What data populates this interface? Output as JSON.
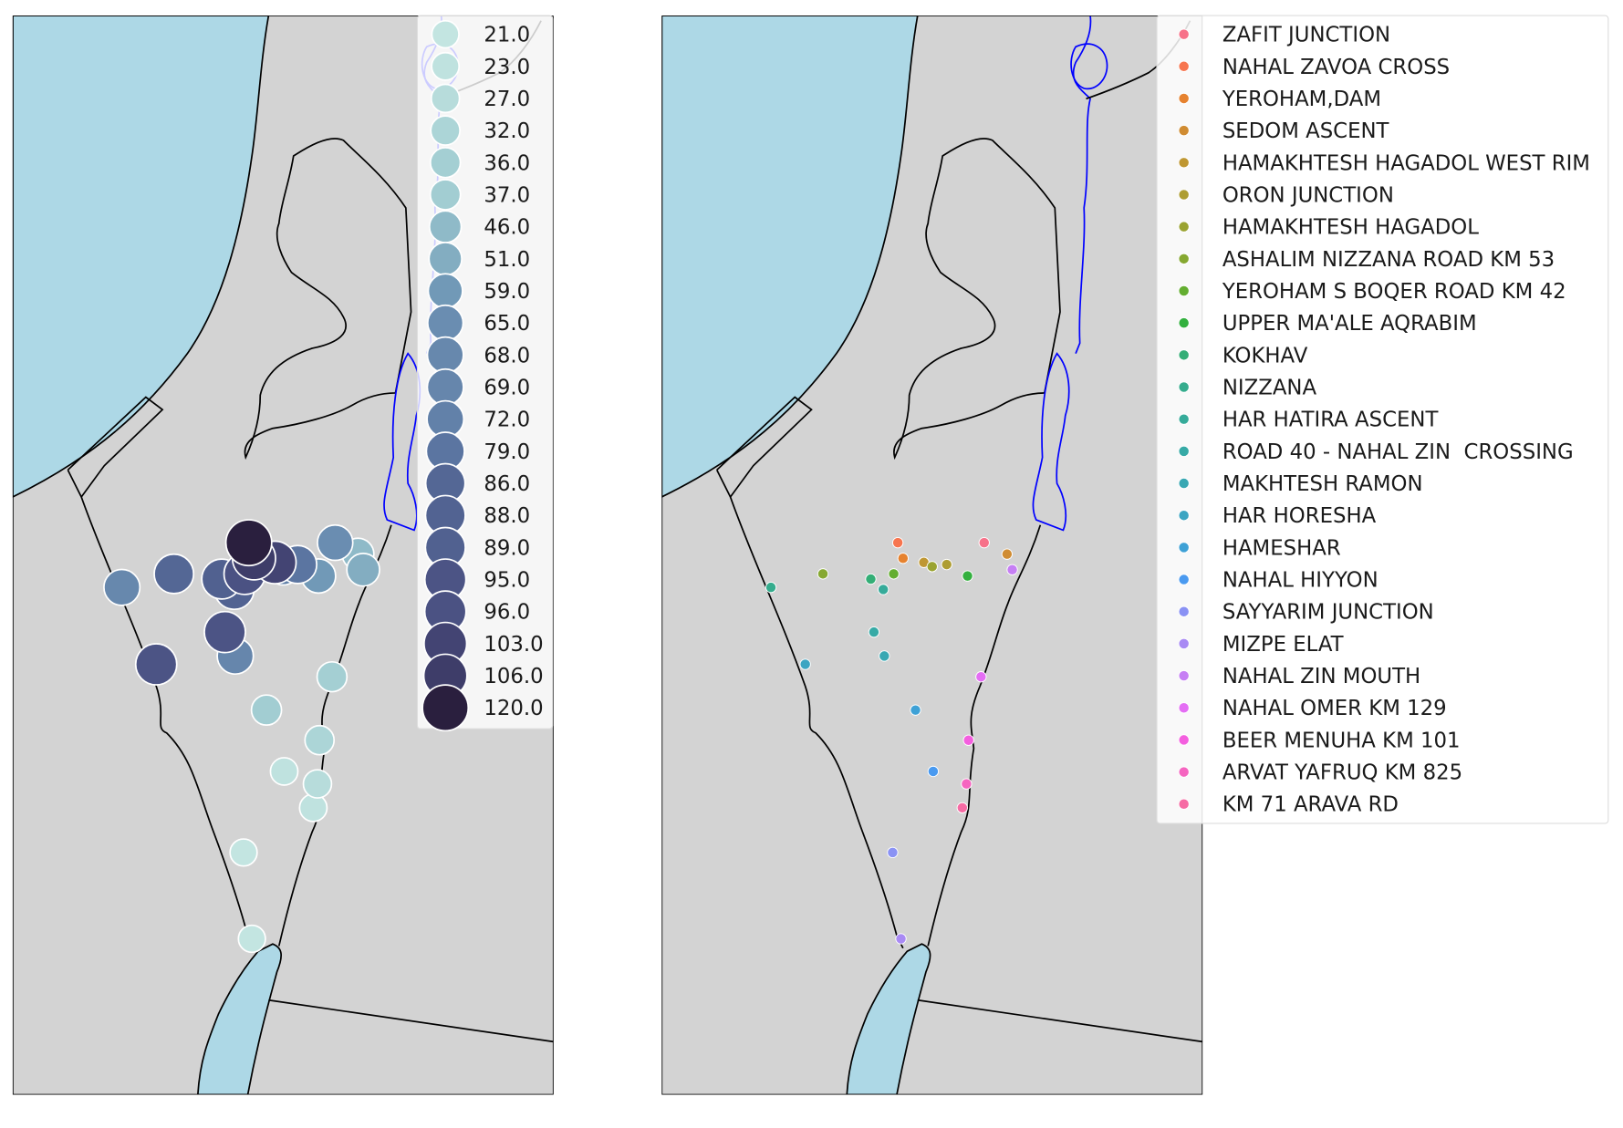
{
  "chart_data": [
    {
      "type": "scatter",
      "encoding": "marker size and color by value",
      "legend_placement": "upper-right",
      "legend_values": [
        21.0,
        23.0,
        27.0,
        32.0,
        36.0,
        37.0,
        46.0,
        51.0,
        59.0,
        65.0,
        68.0,
        69.0,
        72.0,
        79.0,
        86.0,
        88.0,
        89.0,
        95.0,
        96.0,
        103.0,
        106.0,
        120.0
      ],
      "legend_labels": [
        "21.0",
        "23.0",
        "27.0",
        "32.0",
        "36.0",
        "37.0",
        "46.0",
        "51.0",
        "59.0",
        "65.0",
        "68.0",
        "69.0",
        "72.0",
        "79.0",
        "86.0",
        "88.0",
        "89.0",
        "95.0",
        "96.0",
        "103.0",
        "106.0",
        "120.0"
      ],
      "color_low": "#c3e5e1",
      "color_high": "#2a1f3e"
    },
    {
      "type": "scatter",
      "encoding": "marker color by station",
      "legend_placement": "upper-right, outside",
      "stations": [
        {
          "name": "ZAFIT JUNCTION",
          "color": "#f77189",
          "value": 65
        },
        {
          "name": "NAHAL ZAVOA CROSS",
          "color": "#f7754f",
          "value": 120
        },
        {
          "name": "YEROHAM,DAM",
          "color": "#e6822f",
          "value": 106
        },
        {
          "name": "SEDOM ASCENT",
          "color": "#d08c32",
          "value": 46
        },
        {
          "name": "HAMAKHTESH HAGADOL WEST RIM",
          "color": "#bf9732",
          "value": 103
        },
        {
          "name": "ORON JUNCTION",
          "color": "#ae9d31",
          "value": 79
        },
        {
          "name": "HAMAKHTESH HAGADOL",
          "color": "#9aa331",
          "value": 72
        },
        {
          "name": "ASHALIM NIZZANA ROAD KM 53",
          "color": "#86a831",
          "value": 86
        },
        {
          "name": "YEROHAM S BOQER ROAD KM 42",
          "color": "#64ae31",
          "value": 96
        },
        {
          "name": "UPPER MA'ALE AQRABIM",
          "color": "#33b03e",
          "value": 59
        },
        {
          "name": "KOKHAV",
          "color": "#34ae76",
          "value": 89
        },
        {
          "name": "NIZZANA",
          "color": "#35ac8d",
          "value": 68
        },
        {
          "name": "HAR HATIRA ASCENT",
          "color": "#36ab9a",
          "value": 88
        },
        {
          "name": "ROAD 40 - NAHAL ZIN  CROSSING",
          "color": "#37aaa6",
          "value": 95
        },
        {
          "name": "MAKHTESH RAMON",
          "color": "#39a8b3",
          "value": 69
        },
        {
          "name": "HAR HORESHA",
          "color": "#3ba5c2",
          "value": 95
        },
        {
          "name": "HAMESHAR",
          "color": "#3ea1d6",
          "value": 37
        },
        {
          "name": "NAHAL HIYYON",
          "color": "#4a9af0",
          "value": 23
        },
        {
          "name": "SAYYARIM JUNCTION",
          "color": "#8a92f4",
          "value": 21
        },
        {
          "name": "MIZPE ELAT",
          "color": "#a98af4",
          "value": 21
        },
        {
          "name": "NAHAL ZIN MOUTH",
          "color": "#c67ff4",
          "value": 51
        },
        {
          "name": "NAHAL OMER KM 129",
          "color": "#e46ef4",
          "value": 36
        },
        {
          "name": "BEER MENUHA KM 101",
          "color": "#f45fdf",
          "value": 32
        },
        {
          "name": "ARVAT YAFRUQ KM 825",
          "color": "#f565c0",
          "value": 27
        },
        {
          "name": "KM 71 ARAVA RD",
          "color": "#f66ba4",
          "value": 23
        }
      ]
    }
  ],
  "map_colors": {
    "land": "#d3d3d3",
    "water": "#add8e6",
    "borders": "#000000",
    "rivers": "#0000ff"
  }
}
